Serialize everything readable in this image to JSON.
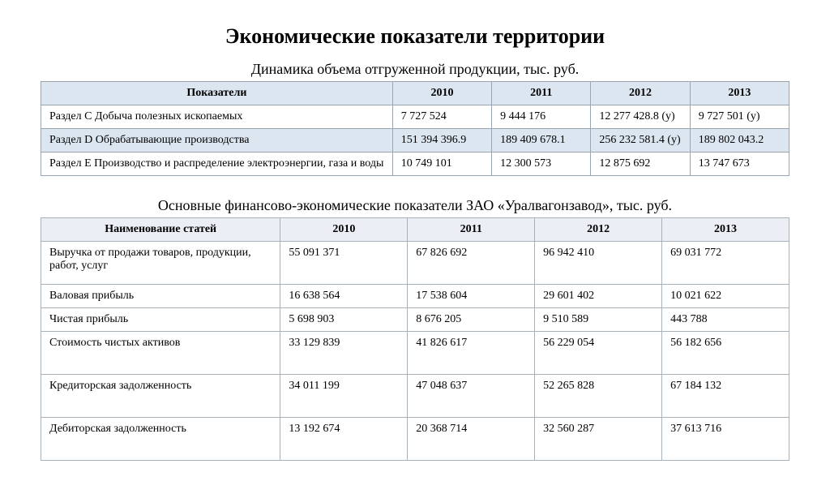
{
  "page_title": "Экономические показатели территории",
  "table1": {
    "caption": "Динамика объема отгруженной продукции, тыс. руб.",
    "columns": [
      "Показатели",
      "2010",
      "2011",
      "2012",
      "2013"
    ],
    "rows": [
      [
        "Раздел C Добыча полезных ископаемых",
        "7 727 524",
        "9 444 176",
        "12 277 428.8 (у)",
        "9 727 501 (у)"
      ],
      [
        "Раздел D Обрабатывающие производства",
        "151 394 396.9",
        "189 409 678.1",
        "256 232 581.4 (у)",
        "189 802 043.2"
      ],
      [
        "Раздел E Производство и распределение электроэнергии, газа и воды",
        "10 749 101",
        "12 300 573",
        "12 875 692",
        "13 747 673"
      ]
    ],
    "header_bg": "#dce6f1",
    "stripe_bg": "#dce6f1",
    "border_color": "#9aa5b0"
  },
  "table2": {
    "caption": "Основные финансово-экономические показатели ЗАО «Уралвагонзавод», тыс. руб.",
    "columns": [
      "Наименование статей",
      "2010",
      "2011",
      "2012",
      "2013"
    ],
    "rows": [
      [
        "Выручка от продажи товаров, продукции, работ, услуг",
        "55 091 371",
        "67 826 692",
        "96 942 410",
        "69 031 772"
      ],
      [
        "Валовая прибыль",
        "16 638 564",
        "17 538 604",
        "29 601 402",
        "10 021 622"
      ],
      [
        "Чистая прибыль",
        "5 698 903",
        "8 676 205",
        "9 510 589",
        "443 788"
      ],
      [
        "Стоимость чистых активов",
        "33 129 839",
        "41 826 617",
        "56 229 054",
        "56 182 656"
      ],
      [
        "Кредиторская задолженность",
        "34 011 199",
        "47 048 637",
        "52 265 828",
        "67 184 132"
      ],
      [
        "Дебиторская задолженность",
        "13 192 674",
        "20 368 714",
        "32 560 287",
        "37 613 716"
      ]
    ],
    "header_bg": "#ebeff5",
    "border_color": "#a8b0b8"
  }
}
